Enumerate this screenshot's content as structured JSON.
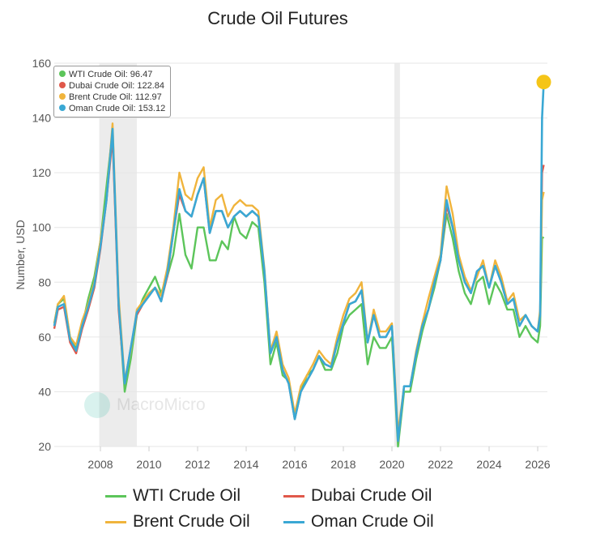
{
  "chart_data": {
    "type": "line",
    "title": "Crude Oil Futures",
    "ylabel": "Number, USD",
    "xlim": [
      2006.1,
      2026.4
    ],
    "ylim": [
      20,
      160
    ],
    "yticks": [
      20,
      40,
      60,
      80,
      100,
      120,
      140,
      160
    ],
    "xticks": [
      2008,
      2010,
      2012,
      2014,
      2016,
      2018,
      2020,
      2022,
      2024,
      2026
    ],
    "grid": true,
    "legend_position": "bottom",
    "shaded_periods": [
      [
        2007.95,
        2009.5
      ],
      [
        2020.1,
        2020.33
      ]
    ],
    "x": [
      2006.1,
      2006.25,
      2006.5,
      2006.75,
      2007.0,
      2007.25,
      2007.5,
      2007.75,
      2008.0,
      2008.25,
      2008.5,
      2008.75,
      2009.0,
      2009.25,
      2009.5,
      2009.75,
      2010.0,
      2010.25,
      2010.5,
      2010.75,
      2011.0,
      2011.25,
      2011.5,
      2011.75,
      2012.0,
      2012.25,
      2012.5,
      2012.75,
      2013.0,
      2013.25,
      2013.5,
      2013.75,
      2014.0,
      2014.25,
      2014.5,
      2014.75,
      2015.0,
      2015.25,
      2015.5,
      2015.75,
      2016.0,
      2016.25,
      2016.5,
      2016.75,
      2017.0,
      2017.25,
      2017.5,
      2017.75,
      2018.0,
      2018.25,
      2018.5,
      2018.75,
      2019.0,
      2019.25,
      2019.5,
      2019.75,
      2020.0,
      2020.25,
      2020.5,
      2020.75,
      2021.0,
      2021.25,
      2021.5,
      2021.75,
      2022.0,
      2022.25,
      2022.5,
      2022.75,
      2023.0,
      2023.25,
      2023.5,
      2023.75,
      2024.0,
      2024.25,
      2024.5,
      2024.75,
      2025.0,
      2025.25,
      2025.5,
      2025.75,
      2026.0,
      2026.1,
      2026.18,
      2026.25
    ],
    "series": [
      {
        "name": "WTI Crude Oil",
        "color": "#5cc55a",
        "values": [
          65,
          72,
          74,
          60,
          56,
          64,
          74,
          82,
          95,
          115,
          135,
          72,
          40,
          52,
          68,
          74,
          78,
          82,
          76,
          82,
          90,
          105,
          90,
          85,
          100,
          100,
          88,
          88,
          95,
          92,
          104,
          98,
          96,
          102,
          100,
          80,
          50,
          58,
          46,
          44,
          30,
          40,
          46,
          48,
          53,
          48,
          48,
          54,
          64,
          68,
          70,
          72,
          50,
          60,
          56,
          56,
          60,
          20,
          40,
          40,
          52,
          62,
          70,
          78,
          88,
          105,
          96,
          84,
          76,
          72,
          80,
          82,
          72,
          80,
          76,
          70,
          70,
          60,
          64,
          60,
          58,
          64,
          96,
          96.47
        ]
      },
      {
        "name": "Dubai Crude Oil",
        "color": "#e0584a",
        "values": [
          63,
          70,
          71,
          58,
          54,
          63,
          70,
          78,
          92,
          110,
          133,
          70,
          43,
          56,
          68,
          72,
          75,
          78,
          73,
          82,
          98,
          112,
          106,
          104,
          112,
          118,
          98,
          106,
          106,
          100,
          104,
          106,
          104,
          106,
          104,
          84,
          54,
          60,
          48,
          43,
          30,
          40,
          44,
          48,
          53,
          50,
          49,
          58,
          65,
          72,
          73,
          77,
          58,
          68,
          60,
          60,
          64,
          22,
          42,
          42,
          54,
          64,
          70,
          80,
          88,
          108,
          100,
          88,
          80,
          76,
          84,
          86,
          78,
          86,
          80,
          72,
          74,
          64,
          68,
          64,
          62,
          68,
          120,
          122.84
        ]
      },
      {
        "name": "Brent Crude Oil",
        "color": "#f0b43c",
        "values": [
          65,
          72,
          75,
          60,
          57,
          66,
          72,
          80,
          95,
          110,
          138,
          75,
          44,
          55,
          70,
          73,
          76,
          78,
          75,
          85,
          100,
          120,
          112,
          110,
          118,
          122,
          100,
          110,
          112,
          104,
          108,
          110,
          108,
          108,
          106,
          85,
          55,
          62,
          50,
          45,
          32,
          42,
          46,
          50,
          55,
          52,
          50,
          60,
          68,
          74,
          76,
          80,
          58,
          70,
          62,
          62,
          65,
          25,
          42,
          42,
          55,
          65,
          74,
          82,
          90,
          115,
          105,
          90,
          82,
          77,
          82,
          88,
          78,
          88,
          82,
          73,
          76,
          66,
          68,
          64,
          62,
          70,
          110,
          112.97
        ]
      },
      {
        "name": "Oman Crude Oil",
        "color": "#3aa8d4",
        "values": [
          64,
          71,
          72,
          59,
          55,
          64,
          71,
          79,
          93,
          110,
          136,
          72,
          43,
          56,
          69,
          72,
          75,
          78,
          73,
          83,
          98,
          114,
          106,
          104,
          112,
          118,
          98,
          106,
          106,
          100,
          104,
          106,
          104,
          106,
          104,
          84,
          54,
          60,
          48,
          43,
          30,
          40,
          44,
          48,
          53,
          50,
          49,
          58,
          65,
          72,
          73,
          77,
          58,
          68,
          60,
          60,
          64,
          22,
          42,
          42,
          54,
          64,
          70,
          80,
          88,
          110,
          100,
          88,
          80,
          76,
          84,
          86,
          78,
          86,
          80,
          72,
          74,
          64,
          68,
          64,
          62,
          68,
          140,
          153.12
        ]
      }
    ]
  },
  "tooltip": [
    {
      "label": "WTI Crude Oil: 96.47",
      "color": "#5cc55a"
    },
    {
      "label": "Dubai Crude Oil: 122.84",
      "color": "#e0584a"
    },
    {
      "label": "Brent Crude Oil: 112.97",
      "color": "#f0b43c"
    },
    {
      "label": "Oman Crude Oil: 153.12",
      "color": "#3aa8d4"
    }
  ],
  "marker_color": "#f5c518",
  "watermark": "MacroMicro"
}
